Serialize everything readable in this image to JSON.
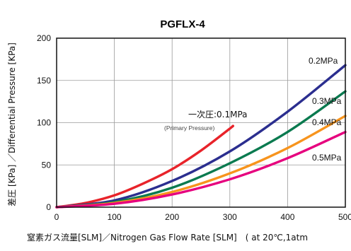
{
  "chart_data": {
    "type": "line",
    "title": "PGFLX-4",
    "xlabel": "窒素ガス流量[SLM]／Nitrogen Gas Flow Rate [SLM]　( at 20℃,1atm",
    "ylabel": "差圧 [KPa] ／Differential Pressure [KPa]",
    "xlim": [
      0,
      500
    ],
    "ylim": [
      0,
      200
    ],
    "x_ticks": [
      "0",
      "100",
      "200",
      "300",
      "400",
      "500"
    ],
    "y_ticks": [
      "0",
      "50",
      "100",
      "150",
      "200"
    ],
    "grid": true,
    "annotation": {
      "main": "一次圧:0.1MPa",
      "sub": "(Primary Pressure)"
    },
    "series": [
      {
        "name": "0.1MPa",
        "color": "#e8232a",
        "x": [
          0,
          50,
          100,
          150,
          200,
          250,
          300,
          305
        ],
        "y": [
          0,
          5,
          14,
          28,
          45,
          67,
          93,
          96
        ]
      },
      {
        "name": "0.2MPa",
        "color": "#2b2e8f",
        "x": [
          0,
          100,
          200,
          300,
          400,
          500
        ],
        "y": [
          0,
          8,
          31,
          66,
          113,
          168
        ]
      },
      {
        "name": "0.3MPa",
        "color": "#0a7a4f",
        "x": [
          0,
          100,
          200,
          300,
          400,
          500
        ],
        "y": [
          0,
          6,
          23,
          52,
          89,
          137
        ]
      },
      {
        "name": "0.4MPa",
        "color": "#f7941d",
        "x": [
          0,
          100,
          200,
          300,
          400,
          500
        ],
        "y": [
          0,
          5,
          18,
          40,
          70,
          108
        ]
      },
      {
        "name": "0.5MPa",
        "color": "#e6007e",
        "x": [
          0,
          100,
          200,
          300,
          400,
          500
        ],
        "y": [
          0,
          4,
          15,
          33,
          58,
          89
        ]
      }
    ]
  }
}
